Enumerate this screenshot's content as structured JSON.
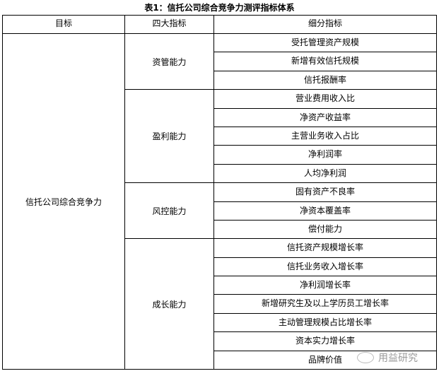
{
  "title": "表1：信托公司综合竞争力测评指标体系",
  "headers": [
    "目标",
    "四大指标",
    "细分指标"
  ],
  "goal": "信托公司综合竞争力",
  "groups": [
    {
      "name": "资管能力",
      "items": [
        "受托管理资产规模",
        "新增有效信托规模",
        "信托报酬率"
      ]
    },
    {
      "name": "盈利能力",
      "items": [
        "营业费用收入比",
        "净资产收益率",
        "主营业务收入占比",
        "净利润率",
        "人均净利润"
      ]
    },
    {
      "name": "风控能力",
      "items": [
        "固有资产不良率",
        "净资本覆盖率",
        "偿付能力"
      ]
    },
    {
      "name": "成长能力",
      "items": [
        "信托资产规模增长率",
        "信托业务收入增长率",
        "净利润增长率",
        "新增研究生及以上学历员工增长率",
        "主动管理规模占比增长率",
        "资本实力增长率",
        "品牌价值"
      ]
    }
  ],
  "watermark": {
    "text": "用益研究",
    "icon": "wechat-icon"
  }
}
